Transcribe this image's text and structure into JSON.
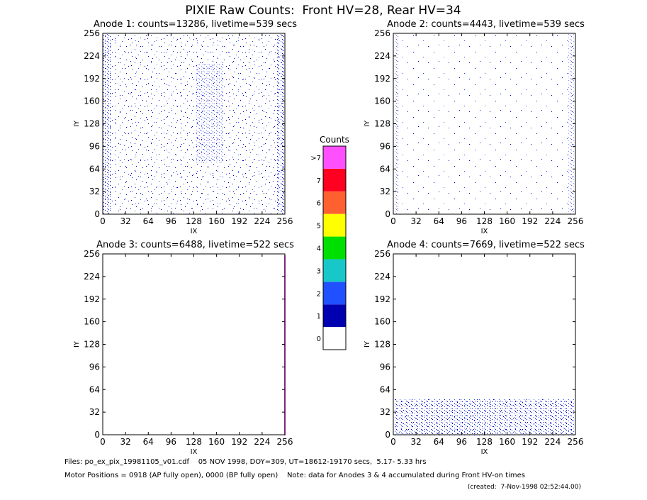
{
  "title": "PIXIE Raw Counts:  Front HV=28, Rear HV=34",
  "chart_data": [
    {
      "type": "heatmap",
      "title": "Anode 1: counts=13286, livetime=539 secs",
      "x_label": "IX",
      "y_label": "IY",
      "xlim": [
        0,
        256
      ],
      "ylim": [
        0,
        256
      ],
      "xticks": [
        0,
        32,
        64,
        96,
        128,
        160,
        192,
        224,
        256
      ],
      "yticks": [
        0,
        32,
        64,
        96,
        128,
        160,
        192,
        224,
        256
      ]
    },
    {
      "type": "heatmap",
      "title": "Anode 2: counts=4443, livetime=539 secs",
      "x_label": "IX",
      "y_label": "IY",
      "xlim": [
        0,
        256
      ],
      "ylim": [
        0,
        256
      ],
      "xticks": [
        0,
        32,
        64,
        96,
        128,
        160,
        192,
        224,
        256
      ],
      "yticks": [
        0,
        32,
        64,
        96,
        128,
        160,
        192,
        224,
        256
      ]
    },
    {
      "type": "heatmap",
      "title": "Anode 3: counts=6488, livetime=522 secs",
      "x_label": "IX",
      "y_label": "IY",
      "xlim": [
        0,
        256
      ],
      "ylim": [
        0,
        256
      ],
      "xticks": [
        0,
        32,
        64,
        96,
        128,
        160,
        192,
        224,
        256
      ],
      "yticks": [
        0,
        32,
        64,
        96,
        128,
        160,
        192,
        224,
        256
      ]
    },
    {
      "type": "heatmap",
      "title": "Anode 4: counts=7669, livetime=522 secs",
      "x_label": "IX",
      "y_label": "IY",
      "xlim": [
        0,
        256
      ],
      "ylim": [
        0,
        256
      ],
      "xticks": [
        0,
        32,
        64,
        96,
        128,
        160,
        192,
        224,
        256
      ],
      "yticks": [
        0,
        32,
        64,
        96,
        128,
        160,
        192,
        224,
        256
      ]
    }
  ],
  "colorbar": {
    "title": "Counts",
    "labels": [
      "0",
      "1",
      "2",
      "3",
      "4",
      "5",
      "6",
      "7",
      ">7"
    ],
    "colors": [
      "#ffffff",
      "#0000b0",
      "#2050ff",
      "#18c8c8",
      "#00e000",
      "#ffff00",
      "#ff6030",
      "#ff0020",
      "#ff50ff"
    ]
  },
  "footer": [
    "Files: po_ex_pix_19981105_v01.cdf    05 NOV 1998, DOY=309, UT=18612-19170 secs,  5.17- 5.33 hrs",
    "Motor Positions = 0918 (AP fully open), 0000 (BP fully open)    Note: data for Anodes 3 & 4 accumulated during Front HV-on times",
    "(created:  7-Nov-1998 02:52:44.00)"
  ]
}
